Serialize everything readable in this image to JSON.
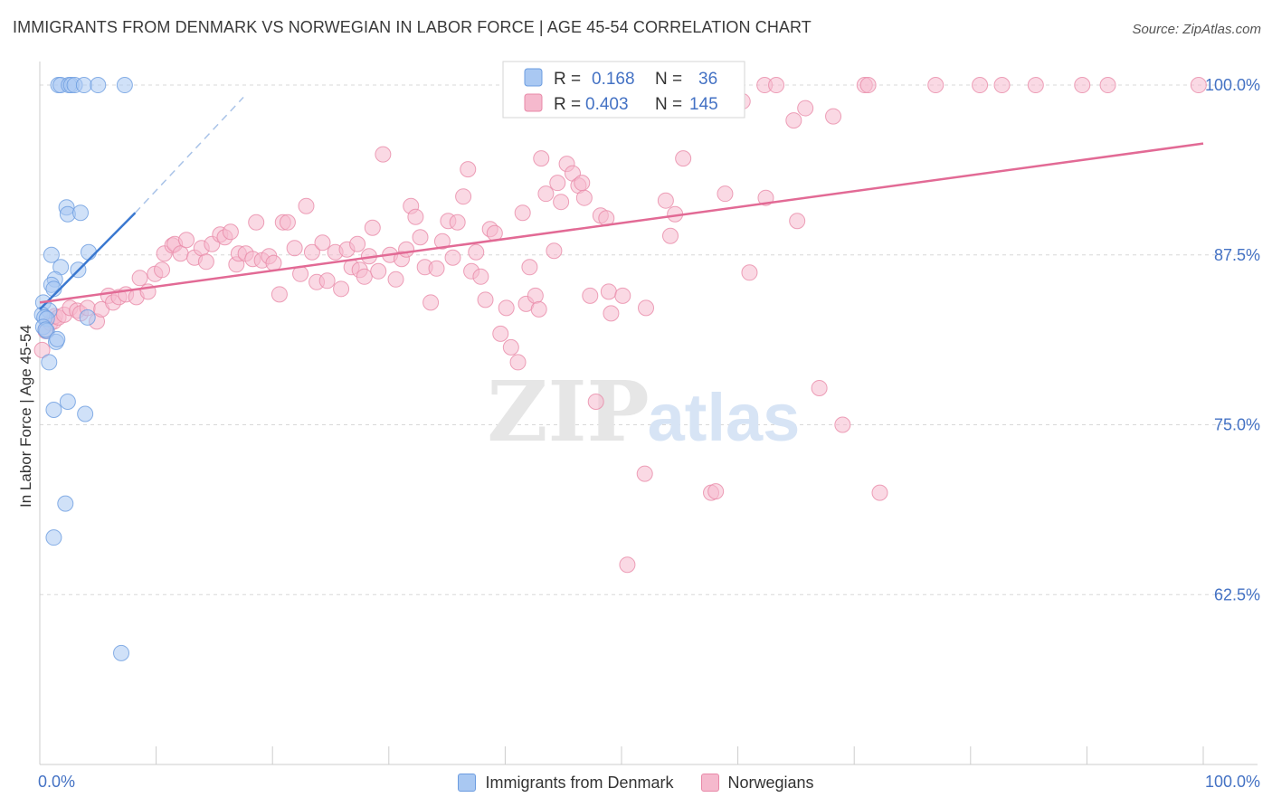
{
  "title": "IMMIGRANTS FROM DENMARK VS NORWEGIAN IN LABOR FORCE | AGE 45-54 CORRELATION CHART",
  "source": "Source: ZipAtlas.com",
  "watermark": {
    "zip": "ZIP",
    "atlas": "atlas"
  },
  "colors": {
    "blue_fill": "#a9c8f2",
    "blue_stroke": "#6c9ce0",
    "blue_line": "#3a78d0",
    "pink_fill": "#f5b9cd",
    "pink_stroke": "#e889a8",
    "pink_line": "#e26a95",
    "tick_label": "#4472c4",
    "grid": "#d8d8d8"
  },
  "stats": [
    {
      "r_label": "R =",
      "r_value": "0.168",
      "n_label": "N =",
      "n_value": "36"
    },
    {
      "r_label": "R =",
      "r_value": "0.403",
      "n_label": "N =",
      "n_value": "145"
    }
  ],
  "legend": [
    "Immigrants from Denmark",
    "Norwegians"
  ],
  "chart_data": {
    "type": "scatter",
    "title": "IMMIGRANTS FROM DENMARK VS NORWEGIAN IN LABOR FORCE | AGE 45-54 CORRELATION CHART",
    "xlabel": "",
    "ylabel": "In Labor Force | Age 45-54",
    "xlim": [
      0,
      100
    ],
    "ylim": [
      50,
      101.6
    ],
    "x_tick_labels": [
      {
        "value": 0,
        "label": "0.0%"
      },
      {
        "value": 100,
        "label": "100.0%"
      }
    ],
    "y_ticks": [
      {
        "value": 100,
        "label": "100.0%"
      },
      {
        "value": 87.5,
        "label": "87.5%"
      },
      {
        "value": 75,
        "label": "75.0%"
      },
      {
        "value": 62.5,
        "label": "62.5%"
      }
    ],
    "grid": true,
    "series": [
      {
        "name": "Immigrants from Denmark",
        "r": 0.168,
        "n": 36,
        "trend": {
          "x0": 0.0,
          "y0": 83.5,
          "x1": 8.2,
          "y1": 90.6
        },
        "trend_extension": {
          "x0": 8.2,
          "y0": 90.6,
          "x1": 17.5,
          "y1": 99.1
        },
        "points": [
          [
            1.6,
            100
          ],
          [
            1.8,
            100
          ],
          [
            2.5,
            100
          ],
          [
            2.7,
            100
          ],
          [
            3,
            100
          ],
          [
            3.8,
            100
          ],
          [
            5,
            100
          ],
          [
            7.3,
            100
          ],
          [
            2.3,
            91
          ],
          [
            2.4,
            90.5
          ],
          [
            3.5,
            90.6
          ],
          [
            4.2,
            87.7
          ],
          [
            1,
            87.5
          ],
          [
            3.3,
            86.4
          ],
          [
            1.8,
            86.6
          ],
          [
            1.3,
            85.7
          ],
          [
            1,
            85.3
          ],
          [
            1.2,
            85
          ],
          [
            0.3,
            84
          ],
          [
            0.8,
            83.4
          ],
          [
            0.2,
            83.1
          ],
          [
            0.4,
            82.9
          ],
          [
            0.6,
            82.8
          ],
          [
            4.1,
            82.9
          ],
          [
            0.3,
            82.2
          ],
          [
            0.6,
            81.9
          ],
          [
            0.5,
            82
          ],
          [
            1.4,
            81.1
          ],
          [
            1.5,
            81.3
          ],
          [
            0.8,
            79.6
          ],
          [
            1.2,
            76.1
          ],
          [
            2.4,
            76.7
          ],
          [
            3.9,
            75.8
          ],
          [
            2.2,
            69.2
          ],
          [
            1.2,
            66.7
          ],
          [
            7,
            58.2
          ]
        ]
      },
      {
        "name": "Norwegians",
        "r": 0.403,
        "n": 145,
        "trend": {
          "x0": 0.0,
          "y0": 84.0,
          "x1": 100.0,
          "y1": 95.7
        },
        "points": [
          [
            0.2,
            80.5
          ],
          [
            0.5,
            81.9
          ],
          [
            0.9,
            82.5
          ],
          [
            1.2,
            82.6
          ],
          [
            1.3,
            83
          ],
          [
            1.6,
            82.9
          ],
          [
            2.1,
            83.1
          ],
          [
            2.6,
            83.6
          ],
          [
            3.2,
            83.4
          ],
          [
            3.5,
            83.2
          ],
          [
            4.1,
            83.6
          ],
          [
            4.9,
            82.6
          ],
          [
            5.3,
            83.5
          ],
          [
            5.9,
            84.5
          ],
          [
            6.3,
            84
          ],
          [
            6.8,
            84.4
          ],
          [
            7.4,
            84.6
          ],
          [
            8.3,
            84.4
          ],
          [
            8.6,
            85.8
          ],
          [
            9.3,
            84.8
          ],
          [
            9.9,
            86.1
          ],
          [
            10.5,
            86.4
          ],
          [
            10.7,
            87.6
          ],
          [
            11.4,
            88.2
          ],
          [
            11.6,
            88.3
          ],
          [
            12.1,
            87.6
          ],
          [
            12.6,
            88.6
          ],
          [
            13.3,
            87.3
          ],
          [
            13.9,
            88
          ],
          [
            14.3,
            87
          ],
          [
            14.8,
            88.3
          ],
          [
            15.5,
            89
          ],
          [
            15.9,
            88.8
          ],
          [
            16.4,
            89.2
          ],
          [
            16.9,
            86.8
          ],
          [
            17.1,
            87.6
          ],
          [
            17.7,
            87.6
          ],
          [
            18.3,
            87.2
          ],
          [
            18.6,
            89.9
          ],
          [
            19.1,
            87.1
          ],
          [
            19.7,
            87.4
          ],
          [
            20.1,
            86.9
          ],
          [
            20.6,
            84.6
          ],
          [
            20.9,
            89.9
          ],
          [
            21.3,
            89.9
          ],
          [
            21.9,
            88
          ],
          [
            22.4,
            86.1
          ],
          [
            22.9,
            91.1
          ],
          [
            23.4,
            87.7
          ],
          [
            23.8,
            85.5
          ],
          [
            24.3,
            88.4
          ],
          [
            24.7,
            85.6
          ],
          [
            25.4,
            87.7
          ],
          [
            25.9,
            85
          ],
          [
            26.4,
            87.9
          ],
          [
            26.8,
            86.6
          ],
          [
            27.3,
            88.3
          ],
          [
            27.5,
            86.4
          ],
          [
            27.9,
            85.9
          ],
          [
            28.3,
            87.4
          ],
          [
            28.6,
            89.5
          ],
          [
            29.1,
            86.3
          ],
          [
            29.5,
            94.9
          ],
          [
            30.1,
            87.5
          ],
          [
            30.6,
            85.7
          ],
          [
            31.1,
            87.2
          ],
          [
            31.5,
            87.9
          ],
          [
            31.9,
            91.1
          ],
          [
            32.3,
            90.3
          ],
          [
            32.7,
            88.8
          ],
          [
            33.1,
            86.6
          ],
          [
            33.6,
            84
          ],
          [
            34.1,
            86.5
          ],
          [
            34.6,
            88.5
          ],
          [
            35.1,
            90
          ],
          [
            35.5,
            87.3
          ],
          [
            35.9,
            89.9
          ],
          [
            36.4,
            91.8
          ],
          [
            36.8,
            93.8
          ],
          [
            37.1,
            86.3
          ],
          [
            37.5,
            87.7
          ],
          [
            37.9,
            85.9
          ],
          [
            38.3,
            84.2
          ],
          [
            38.7,
            89.4
          ],
          [
            39.1,
            89.1
          ],
          [
            39.6,
            81.7
          ],
          [
            40.1,
            83.6
          ],
          [
            40.5,
            80.7
          ],
          [
            41.1,
            79.6
          ],
          [
            41.5,
            90.6
          ],
          [
            41.8,
            83.9
          ],
          [
            42.1,
            86.6
          ],
          [
            42.6,
            84.5
          ],
          [
            42.9,
            83.5
          ],
          [
            43.1,
            94.6
          ],
          [
            43.5,
            92
          ],
          [
            44.2,
            87.8
          ],
          [
            44.5,
            92.8
          ],
          [
            44.8,
            91.4
          ],
          [
            45.3,
            94.2
          ],
          [
            45.8,
            93.5
          ],
          [
            46.3,
            92.6
          ],
          [
            46.6,
            92.8
          ],
          [
            46.8,
            91.7
          ],
          [
            47.3,
            84.5
          ],
          [
            47.8,
            76.7
          ],
          [
            48.2,
            90.4
          ],
          [
            48.7,
            90.2
          ],
          [
            48.9,
            84.8
          ],
          [
            49.1,
            83.2
          ],
          [
            50.1,
            84.5
          ],
          [
            50.5,
            64.7
          ],
          [
            51.1,
            100
          ],
          [
            52,
            71.4
          ],
          [
            52.1,
            83.6
          ],
          [
            53.8,
            91.5
          ],
          [
            54.2,
            88.9
          ],
          [
            54.6,
            90.5
          ],
          [
            55.3,
            94.6
          ],
          [
            56.9,
            100
          ],
          [
            57.7,
            70
          ],
          [
            58.1,
            70.1
          ],
          [
            58.9,
            92
          ],
          [
            59,
            100
          ],
          [
            59.4,
            100
          ],
          [
            60.4,
            98.8
          ],
          [
            61,
            86.2
          ],
          [
            62.3,
            100
          ],
          [
            62.4,
            91.7
          ],
          [
            63.3,
            100
          ],
          [
            64.8,
            97.4
          ],
          [
            65.1,
            90
          ],
          [
            65.8,
            98.3
          ],
          [
            67,
            77.7
          ],
          [
            68.2,
            97.7
          ],
          [
            69,
            75
          ],
          [
            70.9,
            100
          ],
          [
            71.2,
            100
          ],
          [
            72.2,
            70
          ],
          [
            77,
            100
          ],
          [
            80.8,
            100
          ],
          [
            82.7,
            100
          ],
          [
            85.6,
            100
          ],
          [
            89.6,
            100
          ],
          [
            91.8,
            100
          ],
          [
            99.6,
            100
          ]
        ]
      }
    ]
  }
}
